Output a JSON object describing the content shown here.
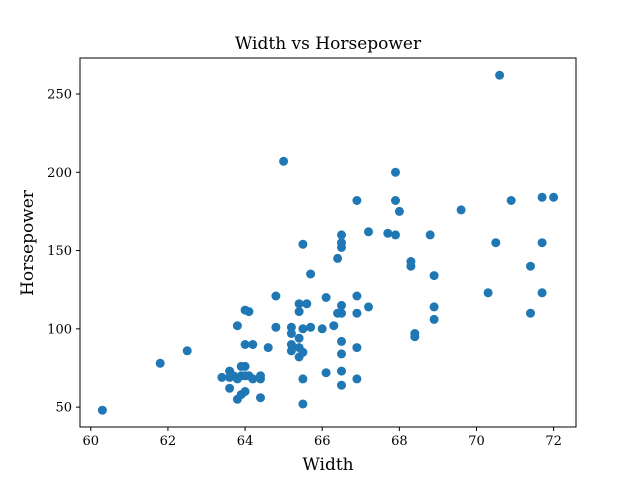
{
  "chart_data": {
    "type": "scatter",
    "title": "Width vs Horsepower",
    "xlabel": "Width",
    "ylabel": "Horsepower",
    "xlim": [
      59.72,
      72.58
    ],
    "ylim": [
      37.3,
      273.0
    ],
    "xticks": [
      60,
      62,
      64,
      66,
      68,
      70,
      72
    ],
    "yticks": [
      50,
      100,
      150,
      200,
      250
    ],
    "color": "#1f77b4",
    "grid": false,
    "points": [
      [
        60.3,
        48
      ],
      [
        61.8,
        78
      ],
      [
        62.5,
        86
      ],
      [
        63.4,
        69
      ],
      [
        63.6,
        62
      ],
      [
        63.6,
        69
      ],
      [
        63.6,
        73
      ],
      [
        63.7,
        70
      ],
      [
        63.8,
        68
      ],
      [
        63.8,
        102
      ],
      [
        63.8,
        55
      ],
      [
        63.9,
        70
      ],
      [
        63.9,
        76
      ],
      [
        63.9,
        58
      ],
      [
        64.0,
        70
      ],
      [
        64.0,
        76
      ],
      [
        64.0,
        90
      ],
      [
        64.0,
        112
      ],
      [
        64.0,
        60
      ],
      [
        64.1,
        111
      ],
      [
        64.1,
        70
      ],
      [
        64.2,
        90
      ],
      [
        64.2,
        68
      ],
      [
        64.4,
        68
      ],
      [
        64.4,
        70
      ],
      [
        64.4,
        56
      ],
      [
        64.6,
        88
      ],
      [
        64.8,
        121
      ],
      [
        64.8,
        101
      ],
      [
        65.0,
        207
      ],
      [
        65.2,
        86
      ],
      [
        65.2,
        90
      ],
      [
        65.2,
        97
      ],
      [
        65.2,
        101
      ],
      [
        65.4,
        116
      ],
      [
        65.4,
        111
      ],
      [
        65.4,
        94
      ],
      [
        65.4,
        88
      ],
      [
        65.4,
        82
      ],
      [
        65.5,
        154
      ],
      [
        65.5,
        100
      ],
      [
        65.5,
        85
      ],
      [
        65.5,
        68
      ],
      [
        65.5,
        52
      ],
      [
        65.6,
        116
      ],
      [
        65.7,
        135
      ],
      [
        65.7,
        101
      ],
      [
        66.0,
        100
      ],
      [
        66.1,
        120
      ],
      [
        66.1,
        72
      ],
      [
        66.3,
        102
      ],
      [
        66.4,
        145
      ],
      [
        66.4,
        110
      ],
      [
        66.5,
        160
      ],
      [
        66.5,
        155
      ],
      [
        66.5,
        152
      ],
      [
        66.5,
        115
      ],
      [
        66.5,
        110
      ],
      [
        66.5,
        92
      ],
      [
        66.5,
        84
      ],
      [
        66.5,
        73
      ],
      [
        66.5,
        64
      ],
      [
        66.9,
        182
      ],
      [
        66.9,
        121
      ],
      [
        66.9,
        110
      ],
      [
        66.9,
        88
      ],
      [
        66.9,
        68
      ],
      [
        67.2,
        162
      ],
      [
        67.2,
        114
      ],
      [
        67.7,
        161
      ],
      [
        67.9,
        200
      ],
      [
        67.9,
        182
      ],
      [
        67.9,
        160
      ],
      [
        68.0,
        175
      ],
      [
        68.3,
        143
      ],
      [
        68.3,
        140
      ],
      [
        68.4,
        97
      ],
      [
        68.4,
        95
      ],
      [
        68.8,
        160
      ],
      [
        68.9,
        134
      ],
      [
        68.9,
        114
      ],
      [
        68.9,
        106
      ],
      [
        69.6,
        176
      ],
      [
        70.3,
        123
      ],
      [
        70.5,
        155
      ],
      [
        70.6,
        262
      ],
      [
        70.9,
        182
      ],
      [
        71.4,
        140
      ],
      [
        71.4,
        110
      ],
      [
        71.7,
        184
      ],
      [
        71.7,
        155
      ],
      [
        71.7,
        123
      ],
      [
        72.0,
        184
      ]
    ]
  }
}
